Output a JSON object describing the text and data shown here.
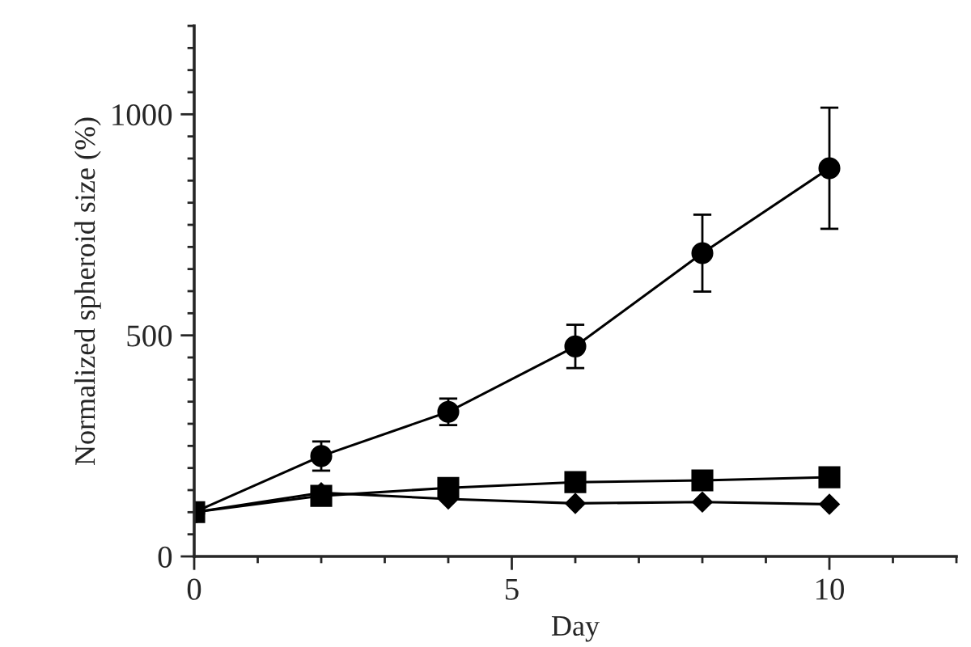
{
  "chart_data": {
    "type": "line",
    "xlabel": "Day",
    "ylabel": "Normalized spheroid size (%)",
    "x": [
      0,
      2,
      4,
      6,
      8,
      10
    ],
    "series": [
      {
        "color": "#000000",
        "marker": "circle",
        "values": [
          100,
          227,
          327,
          475,
          686,
          878
        ],
        "errors": [
          null,
          33,
          30,
          49,
          87,
          137
        ]
      },
      {
        "color": "#000000",
        "marker": "square",
        "values": [
          100,
          137,
          155,
          168,
          172,
          179
        ]
      },
      {
        "color": "#000000",
        "marker": "diamond",
        "values": [
          100,
          144,
          130,
          120,
          123,
          118
        ]
      }
    ],
    "xlim": [
      0,
      12
    ],
    "ylim": [
      0,
      1200
    ],
    "xticks": [
      0,
      {
        "value": 1,
        "label": null
      },
      {
        "value": 2,
        "label": null
      },
      {
        "value": 3,
        "label": null
      },
      {
        "value": 4,
        "label": null
      },
      5,
      {
        "value": 6,
        "label": null
      },
      {
        "value": 7,
        "label": null
      },
      {
        "value": 8,
        "label": null
      },
      {
        "value": 9,
        "label": null
      },
      10,
      {
        "value": 11,
        "label": null
      },
      {
        "value": 12,
        "label": null
      }
    ],
    "yticks": [
      0,
      {
        "value": 50,
        "label": null
      },
      {
        "value": 100,
        "label": null
      },
      {
        "value": 150,
        "label": null
      },
      {
        "value": 200,
        "label": null
      },
      {
        "value": 250,
        "label": null
      },
      {
        "value": 300,
        "label": null
      },
      {
        "value": 350,
        "label": null
      },
      {
        "value": 400,
        "label": null
      },
      {
        "value": 450,
        "label": null
      },
      500,
      {
        "value": 550,
        "label": null
      },
      {
        "value": 600,
        "label": null
      },
      {
        "value": 650,
        "label": null
      },
      {
        "value": 700,
        "label": null
      },
      {
        "value": 750,
        "label": null
      },
      {
        "value": 800,
        "label": null
      },
      {
        "value": 850,
        "label": null
      },
      {
        "value": 900,
        "label": null
      },
      {
        "value": 950,
        "label": null
      },
      1000,
      {
        "value": 1050,
        "label": null
      },
      {
        "value": 1100,
        "label": null
      },
      {
        "value": 1150,
        "label": null
      },
      {
        "value": 1200,
        "label": null
      }
    ],
    "grid": false,
    "line_style": "solid"
  }
}
